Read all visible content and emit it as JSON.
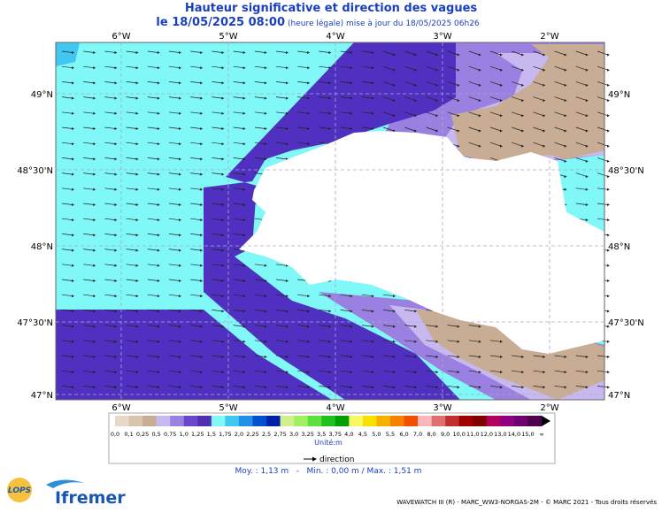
{
  "header": {
    "title": "Hauteur significative et direction des vagues",
    "date": "le 18/05/2025 08:00",
    "subtitle": "(heure légale) mise à jour du 18/05/2025 06h26"
  },
  "map": {
    "x_labels": [
      "6°W",
      "5°W",
      "4°W",
      "3°W",
      "2°W"
    ],
    "y_labels": [
      "49°N",
      "48°30'N",
      "48°N",
      "47°30'N",
      "47°N"
    ]
  },
  "legend": {
    "labels": [
      "0,0",
      "0,1",
      "0,25",
      "0,5",
      "0,75",
      "1,0",
      "1,25",
      "1,5",
      "1,75",
      "2,0",
      "2,25",
      "2,5",
      "2,75",
      "3,0",
      "3,25",
      "3,5",
      "3,75",
      "4,0",
      "4,5",
      "5,0",
      "5,5",
      "6,0",
      "7,0",
      "8,0",
      "9,0",
      "10,0",
      "11,0",
      "12,0",
      "13,0",
      "14,0",
      "15,0",
      "∞"
    ],
    "colors": [
      "#e8d8c8",
      "#d8c4ac",
      "#c8ad94",
      "#c8b8f0",
      "#9a80e0",
      "#6a48cc",
      "#5030b0",
      "#80f8f8",
      "#40c8f0",
      "#2090e8",
      "#0050d0",
      "#0020a8",
      "#d0f090",
      "#a0f060",
      "#60e040",
      "#20c020",
      "#00a000",
      "#f8f860",
      "#f8e000",
      "#f8b000",
      "#f88000",
      "#f05000",
      "#f8b8b8",
      "#e07070",
      "#c03030",
      "#a00000",
      "#800000",
      "#b00060",
      "#900080",
      "#700070",
      "#500050"
    ],
    "unit": "Unité:m",
    "direction": "direction"
  },
  "stats": "Moy. : 1,13 m   -   Min. : 0,00 m / Max. : 1,51 m",
  "footer": "WAVEWATCH III (R) - MARC_WW3-NORGAS-2M - © MARC 2021 - Tous droits réservés",
  "logos": {
    "lops": "LOPS",
    "ifremer": "Ifremer"
  }
}
